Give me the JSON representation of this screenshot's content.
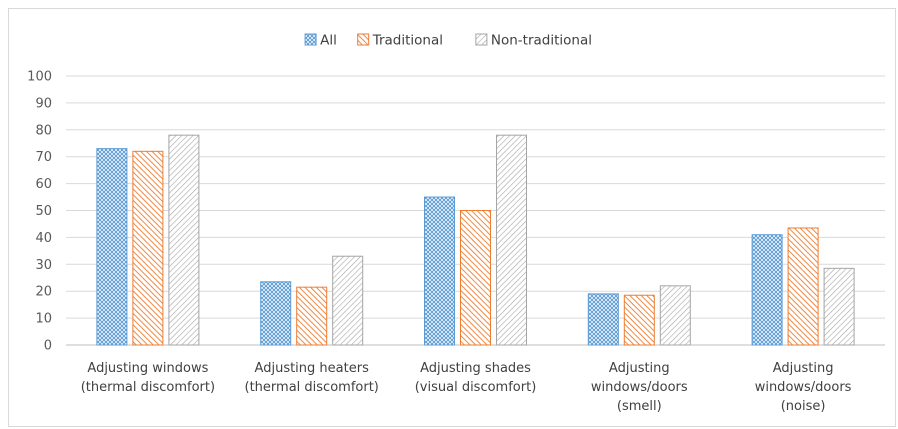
{
  "chart_data": {
    "type": "bar",
    "categories": [
      [
        "Adjusting windows",
        "(thermal discomfort)"
      ],
      [
        "Adjusting heaters",
        "(thermal discomfort)"
      ],
      [
        "Adjusting shades",
        "(visual discomfort)"
      ],
      [
        "Adjusting",
        "windows/doors",
        "(smell)"
      ],
      [
        "Adjusting",
        "windows/doors",
        "(noise)"
      ]
    ],
    "series": [
      {
        "name": "All",
        "values": [
          73,
          23.5,
          55,
          19,
          41
        ],
        "color": "#5b9bd5",
        "pattern": "crosshatch"
      },
      {
        "name": "Traditional",
        "values": [
          72,
          21.5,
          50,
          18.5,
          43.5
        ],
        "color": "#ed7d31",
        "pattern": "diagonal-dense"
      },
      {
        "name": "Non-traditional",
        "values": [
          78,
          33,
          78,
          22,
          28.5
        ],
        "color": "#a5a5a5",
        "pattern": "diagonal-light"
      }
    ],
    "ylim": [
      0,
      100
    ],
    "yticks": [
      "0",
      "10",
      "20",
      "30",
      "40",
      "50",
      "60",
      "70",
      "80",
      "90",
      "100"
    ],
    "grid": true,
    "legend": "top-center",
    "title": "",
    "xlabel": "",
    "ylabel": ""
  }
}
